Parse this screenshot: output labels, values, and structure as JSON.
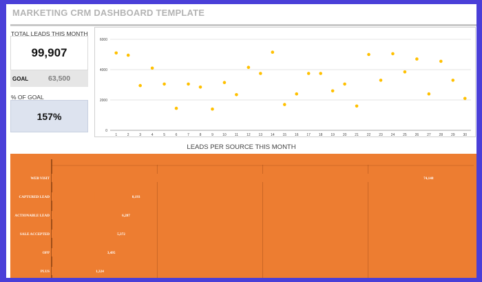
{
  "header": {
    "title": "MARKETING CRM DASHBOARD TEMPLATE"
  },
  "kpi": {
    "total_leads_label": "TOTAL LEADS THIS MONTH",
    "total_leads_value": "99,907",
    "goal_label": "GOAL",
    "goal_value": "63,500",
    "pct_goal_label": "% OF GOAL",
    "pct_goal_value": "157%"
  },
  "colors": {
    "accent": "#ed7d31",
    "point": "#ffc000",
    "frame": "#4a3fd8"
  },
  "chart_data": [
    {
      "type": "scatter",
      "x": [
        1,
        2,
        3,
        4,
        5,
        6,
        7,
        8,
        9,
        10,
        11,
        12,
        13,
        14,
        15,
        16,
        17,
        18,
        19,
        20,
        21,
        22,
        23,
        24,
        25,
        26,
        27,
        28,
        29,
        30
      ],
      "series": [
        {
          "values": [
            5100,
            4950,
            2950,
            4100,
            3050,
            1450,
            3050,
            2850,
            1400,
            3150,
            2350,
            4150,
            3750,
            5150,
            1700,
            2400,
            3750,
            3750,
            2600,
            3050,
            1600,
            5000,
            3300,
            5050,
            3850,
            4700,
            2400,
            4550,
            3300,
            2100
          ]
        }
      ],
      "ylim": [
        0,
        6000
      ],
      "yticks": [
        "0",
        "2000",
        "4000",
        "6000"
      ],
      "xticks": [
        "1",
        "2",
        "3",
        "4",
        "5",
        "6",
        "7",
        "8",
        "9",
        "10",
        "11",
        "12",
        "13",
        "14",
        "15",
        "16",
        "17",
        "18",
        "19",
        "20",
        "21",
        "22",
        "23",
        "24",
        "25",
        "26",
        "27",
        "28",
        "29",
        "30"
      ],
      "grid": true,
      "title": "",
      "xlabel": "",
      "ylabel": ""
    },
    {
      "type": "bar",
      "orientation": "horizontal",
      "title": "LEADS PER SOURCE THIS MONTH",
      "categories": [
        "WEB VISIT",
        "CAPTURED LEAD",
        "ACTIONABLE LEAD",
        "SALE ACCEPTED",
        "OPP",
        "PLUS"
      ],
      "values": [
        74148,
        8193,
        6287,
        5372,
        3495,
        1324
      ],
      "value_labels": [
        "74,148",
        "8,193",
        "6,287",
        "5,372",
        "3,495",
        "1,324"
      ],
      "xlim": [
        0,
        80000
      ],
      "grid": true
    }
  ]
}
